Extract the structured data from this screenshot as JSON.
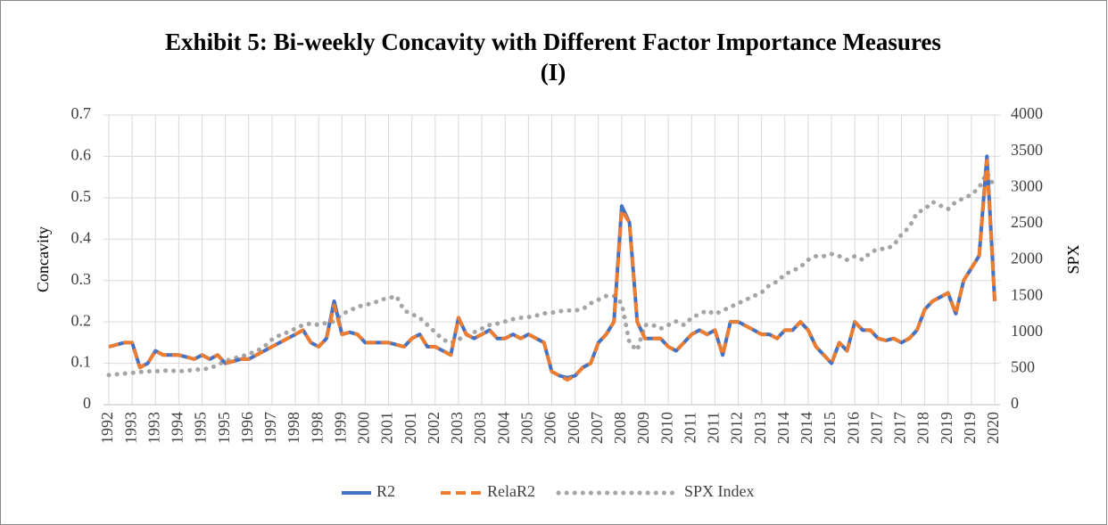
{
  "chart_data": {
    "type": "line",
    "title": "Exhibit 5: Bi-weekly Concavity with Different Factor Importance Measures (I)",
    "y_label": "Concavity",
    "y2_label": "SPX",
    "categories": [
      "1992",
      null,
      null,
      "1993",
      null,
      null,
      "1993",
      null,
      null,
      "1994",
      null,
      null,
      "1995",
      null,
      null,
      "1995",
      null,
      null,
      "1996",
      null,
      null,
      "1997",
      null,
      null,
      "1998",
      null,
      null,
      "1998",
      null,
      null,
      "1999",
      null,
      null,
      "2000",
      null,
      null,
      "2001",
      null,
      null,
      "2001",
      null,
      null,
      "2002",
      null,
      null,
      "2003",
      null,
      null,
      "2003",
      null,
      null,
      "2004",
      null,
      null,
      "2005",
      null,
      null,
      "2006",
      null,
      null,
      "2006",
      null,
      null,
      "2007",
      null,
      null,
      "2008",
      null,
      null,
      "2009",
      null,
      null,
      "2010",
      null,
      null,
      "2011",
      null,
      null,
      "2011",
      null,
      null,
      "2012",
      null,
      null,
      "2013",
      null,
      null,
      "2014",
      null,
      null,
      "2014",
      null,
      null,
      "2015",
      null,
      null,
      "2016",
      null,
      null,
      "2017",
      null,
      null,
      "2017",
      null,
      null,
      "2018",
      null,
      null,
      "2019",
      null,
      null,
      "2019",
      null,
      null,
      "2020"
    ],
    "series": [
      {
        "name": "R2",
        "color": "#4472c4",
        "dash": "solid",
        "values": [
          0.14,
          0.145,
          0.15,
          0.15,
          0.09,
          0.1,
          0.13,
          0.12,
          0.12,
          0.12,
          0.115,
          0.11,
          0.12,
          0.11,
          0.12,
          0.1,
          0.105,
          0.11,
          0.11,
          0.12,
          0.13,
          0.14,
          0.15,
          0.16,
          0.17,
          0.18,
          0.15,
          0.14,
          0.16,
          0.25,
          0.17,
          0.175,
          0.17,
          0.15,
          0.15,
          0.15,
          0.15,
          0.145,
          0.14,
          0.16,
          0.17,
          0.14,
          0.14,
          0.13,
          0.12,
          0.21,
          0.17,
          0.16,
          0.17,
          0.18,
          0.16,
          0.16,
          0.17,
          0.16,
          0.17,
          0.16,
          0.15,
          0.08,
          0.07,
          0.065,
          0.07,
          0.09,
          0.1,
          0.15,
          0.17,
          0.2,
          0.48,
          0.44,
          0.2,
          0.16,
          0.16,
          0.16,
          0.14,
          0.13,
          0.15,
          0.17,
          0.18,
          0.17,
          0.18,
          0.12,
          0.2,
          0.2,
          0.19,
          0.18,
          0.17,
          0.17,
          0.16,
          0.18,
          0.18,
          0.2,
          0.18,
          0.14,
          0.12,
          0.1,
          0.15,
          0.13,
          0.2,
          0.18,
          0.18,
          0.16,
          0.155,
          0.16,
          0.15,
          0.16,
          0.18,
          0.23,
          0.25,
          0.26,
          0.27,
          0.22,
          0.3,
          0.33,
          0.36,
          0.6,
          0.25
        ]
      },
      {
        "name": "RelaR2",
        "color": "#ed7d31",
        "dash": "dashed",
        "values": [
          0.14,
          0.145,
          0.15,
          0.15,
          0.09,
          0.1,
          0.13,
          0.12,
          0.12,
          0.12,
          0.115,
          0.11,
          0.12,
          0.11,
          0.12,
          0.1,
          0.105,
          0.11,
          0.11,
          0.12,
          0.13,
          0.14,
          0.15,
          0.16,
          0.17,
          0.18,
          0.15,
          0.14,
          0.16,
          0.24,
          0.17,
          0.175,
          0.17,
          0.15,
          0.15,
          0.15,
          0.15,
          0.145,
          0.14,
          0.16,
          0.17,
          0.14,
          0.14,
          0.13,
          0.12,
          0.21,
          0.17,
          0.16,
          0.17,
          0.18,
          0.16,
          0.16,
          0.17,
          0.16,
          0.17,
          0.16,
          0.15,
          0.08,
          0.07,
          0.06,
          0.07,
          0.09,
          0.1,
          0.15,
          0.17,
          0.2,
          0.47,
          0.44,
          0.2,
          0.16,
          0.16,
          0.16,
          0.14,
          0.13,
          0.15,
          0.17,
          0.18,
          0.17,
          0.18,
          0.12,
          0.2,
          0.2,
          0.19,
          0.18,
          0.17,
          0.17,
          0.16,
          0.18,
          0.18,
          0.2,
          0.18,
          0.14,
          0.12,
          0.1,
          0.15,
          0.13,
          0.2,
          0.18,
          0.18,
          0.16,
          0.155,
          0.16,
          0.15,
          0.16,
          0.18,
          0.23,
          0.25,
          0.26,
          0.27,
          0.22,
          0.3,
          0.33,
          0.36,
          0.59,
          0.25
        ]
      },
      {
        "name": "SPX Index",
        "color": "#a5a5a5",
        "dash": "dotted",
        "axis": "y2",
        "values": [
          410,
          420,
          430,
          440,
          450,
          460,
          460,
          470,
          470,
          460,
          470,
          480,
          490,
          500,
          550,
          600,
          640,
          660,
          700,
          740,
          800,
          900,
          960,
          1000,
          1050,
          1100,
          1120,
          1100,
          1130,
          1150,
          1250,
          1300,
          1350,
          1380,
          1400,
          1450,
          1470,
          1500,
          1300,
          1250,
          1200,
          1100,
          1000,
          900,
          850,
          900,
          960,
          1000,
          1050,
          1100,
          1120,
          1150,
          1180,
          1200,
          1210,
          1230,
          1260,
          1270,
          1290,
          1300,
          1300,
          1320,
          1400,
          1450,
          1500,
          1500,
          1400,
          850,
          750,
          1100,
          1100,
          1050,
          1100,
          1150,
          1100,
          1200,
          1250,
          1300,
          1250,
          1300,
          1350,
          1400,
          1450,
          1500,
          1550,
          1650,
          1700,
          1800,
          1850,
          1900,
          2000,
          2050,
          2050,
          2080,
          2050,
          2000,
          2050,
          2000,
          2100,
          2150,
          2150,
          2200,
          2350,
          2450,
          2650,
          2700,
          2800,
          2750,
          2700,
          2800,
          2850,
          2900,
          3000,
          3200,
          3000
        ]
      }
    ],
    "ylim": [
      0,
      0.7
    ],
    "yticks": [
      0,
      0.1,
      0.2,
      0.3,
      0.4,
      0.5,
      0.6,
      0.7
    ],
    "y2lim": [
      0,
      4000
    ],
    "y2ticks": [
      0,
      500,
      1000,
      1500,
      2000,
      2500,
      3000,
      3500,
      4000
    ],
    "grid": true,
    "legend": "bottom"
  }
}
